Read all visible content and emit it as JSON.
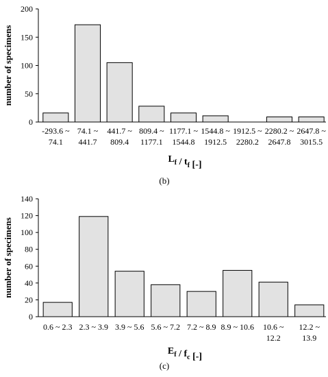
{
  "chart_data": [
    {
      "type": "bar",
      "caption": "(b)",
      "xlabel_main": "L",
      "xlabel_main_sub": "f",
      "xlabel_sep": " / t",
      "xlabel_sep_sub": "f",
      "xlabel_unit": " [-]",
      "ylabel": "number of specimens",
      "ylim": [
        0,
        200
      ],
      "yticks": [
        0,
        50,
        100,
        150,
        200
      ],
      "categories": [
        [
          "-293.6 ~",
          "74.1"
        ],
        [
          "74.1 ~",
          "441.7"
        ],
        [
          "441.7 ~",
          "809.4"
        ],
        [
          "809.4 ~",
          "1177.1"
        ],
        [
          "1177.1 ~",
          "1544.8"
        ],
        [
          "1544.8 ~",
          "1912.5"
        ],
        [
          "1912.5 ~",
          "2280.2"
        ],
        [
          "2280.2 ~",
          "2647.8"
        ],
        [
          "2647.8 ~",
          "3015.5"
        ]
      ],
      "values": [
        16,
        172,
        105,
        28,
        16,
        11,
        0,
        9,
        9
      ]
    },
    {
      "type": "bar",
      "caption": "(c)",
      "xlabel_main": "E",
      "xlabel_main_sub": "f",
      "xlabel_sep": " / f",
      "xlabel_sep_sub": "c",
      "xlabel_unit": " [-]",
      "ylabel": "number of specimens",
      "ylim": [
        0,
        140
      ],
      "yticks": [
        0,
        20,
        40,
        60,
        80,
        100,
        120,
        140
      ],
      "categories": [
        [
          "0.6 ~ 2.3"
        ],
        [
          "2.3 ~ 3.9"
        ],
        [
          "3.9 ~ 5.6"
        ],
        [
          "5.6 ~ 7.2"
        ],
        [
          "7.2 ~ 8.9"
        ],
        [
          "8.9 ~ 10.6"
        ],
        [
          "10.6 ~",
          "12.2"
        ],
        [
          "12.2 ~",
          "13.9"
        ]
      ],
      "values": [
        17,
        119,
        54,
        38,
        30,
        55,
        41,
        14
      ]
    }
  ]
}
